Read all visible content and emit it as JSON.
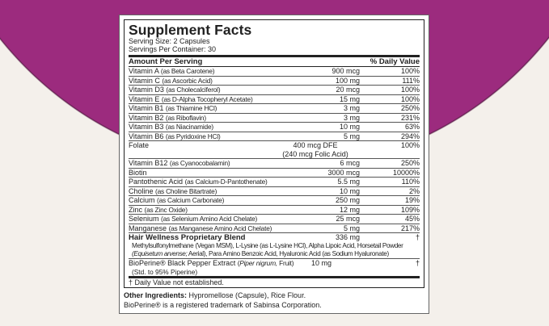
{
  "colors": {
    "accent": "#9c2b7e",
    "background": "#f4f0eb"
  },
  "title": "Supplement Facts",
  "serving_size": "Serving Size: 2 Capsules",
  "servings_per_container": "Servings Per Container: 30",
  "header": {
    "amount": "Amount Per Serving",
    "dv": "% Daily Value"
  },
  "rows": [
    {
      "name": "Vitamin A",
      "source": "(as Beta Carotene)",
      "amount": "900 mcg",
      "dv": "100%"
    },
    {
      "name": "Vitamin C",
      "source": "(as Ascorbic Acid)",
      "amount": "100 mg",
      "dv": "111%"
    },
    {
      "name": "Vitamin D3",
      "source": "(as Cholecalciferol)",
      "amount": "20 mcg",
      "dv": "100%"
    },
    {
      "name": "Vitamin E",
      "source": "(as D-Alpha Tocopheryl Acetate)",
      "amount": "15 mg",
      "dv": "100%"
    },
    {
      "name": "Vitamin B1",
      "source": "(as Thiamine HCl)",
      "amount": "3 mg",
      "dv": "250%"
    },
    {
      "name": "Vitamin B2",
      "source": "(as Riboflavin)",
      "amount": "3 mg",
      "dv": "231%"
    },
    {
      "name": "Vitamin B3",
      "source": "(as Niacinamide)",
      "amount": "10 mg",
      "dv": "63%"
    },
    {
      "name": "Vitamin B6",
      "source": "(as Pyridoxine HCl)",
      "amount": "5 mg",
      "dv": "294%"
    },
    {
      "name": "Folate",
      "source": "",
      "amount": "400 mcg DFE",
      "amount2": "(240 mcg Folic Acid)",
      "dv": "100%"
    },
    {
      "name": "Vitamin B12",
      "source": "(as Cyanocobalamin)",
      "amount": "6 mcg",
      "dv": "250%"
    },
    {
      "name": "Biotin",
      "source": "",
      "amount": "3000 mcg",
      "dv": "10000%"
    },
    {
      "name": "Pantothenic Acid",
      "source": "(as Calcium-D-Pantothenate)",
      "amount": "5.5 mg",
      "dv": "110%"
    },
    {
      "name": "Choline",
      "source": "(as Choline Bitartrate)",
      "amount": "10 mg",
      "dv": "2%"
    },
    {
      "name": "Calcium",
      "source": "(as Calcium Carbonate)",
      "amount": "250 mg",
      "dv": "19%"
    },
    {
      "name": "Zinc",
      "source": "(as Zinc Oxide)",
      "amount": "12 mg",
      "dv": "109%"
    },
    {
      "name": "Selenium",
      "source": "(as Selenium Amino Acid Chelate)",
      "amount": "25 mcg",
      "dv": "45%"
    },
    {
      "name": "Manganese",
      "source": "(as Manganese Amino Acid Chelate)",
      "amount": "5 mg",
      "dv": "217%"
    }
  ],
  "blend": {
    "name": "Hair Wellness Proprietary Blend",
    "amount": "336 mg",
    "dv": "†",
    "desc1": "Methylsulfonylmethane (Vegan MSM), L-Lysine (as L-Lysine HCl), Alpha Lipoic Acid, Horsetail Powder",
    "desc2_italic": "(Equisetum arvense;",
    "desc2": " Aerial), Para Amino Benzoic Acid, Hyaluronic Acid (as Sodium Hyaluronate)"
  },
  "bioperine": {
    "name": "BioPerine® Black Pepper Extract",
    "source_open": "(",
    "source_italic": "Piper nigrum,",
    "source_close": " Fruit)",
    "std": "(Std. to 95% Piperine)",
    "amount": "10 mg",
    "dv": "†"
  },
  "footnote": "† Daily Value not established.",
  "other_label": "Other Ingredients:",
  "other_text": " Hypromellose (Capsule), Rice Flour.",
  "trademark": "BioPerine® is a registered trademark of Sabinsa Corporation."
}
